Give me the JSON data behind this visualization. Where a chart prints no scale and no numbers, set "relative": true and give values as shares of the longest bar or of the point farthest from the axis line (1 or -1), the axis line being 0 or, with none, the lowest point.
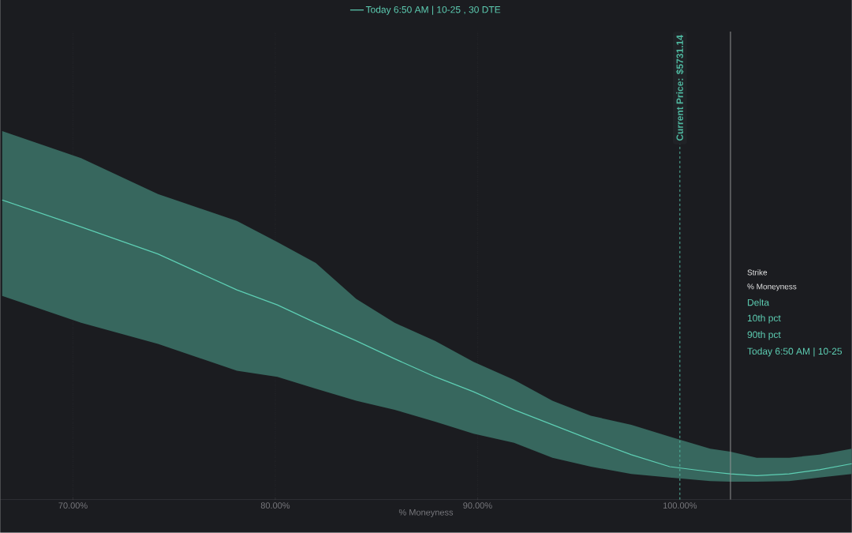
{
  "chart_data": {
    "type": "line",
    "relative": true,
    "xlabel": "% Moneyness",
    "x": [
      66.5,
      70.4,
      74.2,
      78.1,
      80.1,
      82.0,
      84.0,
      85.9,
      87.9,
      89.8,
      91.8,
      93.7,
      95.6,
      97.6,
      99.5,
      101.5,
      102.5,
      103.8,
      105.4,
      106.9,
      108.5
    ],
    "series": [
      {
        "name": "Today 6:50 AM | 10-25 , 30 DTE",
        "color": "#5ecfb4",
        "values": [
          1.0,
          0.91,
          0.82,
          0.7,
          0.65,
          0.59,
          0.53,
          0.47,
          0.41,
          0.36,
          0.3,
          0.25,
          0.2,
          0.15,
          0.11,
          0.093,
          0.086,
          0.08,
          0.086,
          0.1,
          0.12
        ],
        "upper": [
          1.23,
          1.14,
          1.02,
          0.93,
          0.86,
          0.79,
          0.67,
          0.59,
          0.53,
          0.46,
          0.4,
          0.33,
          0.28,
          0.25,
          0.21,
          0.17,
          0.16,
          0.14,
          0.14,
          0.15,
          0.17
        ],
        "lower": [
          0.68,
          0.59,
          0.52,
          0.43,
          0.41,
          0.37,
          0.33,
          0.3,
          0.26,
          0.22,
          0.19,
          0.14,
          0.11,
          0.086,
          0.074,
          0.062,
          0.06,
          0.06,
          0.062,
          0.074,
          0.086
        ]
      }
    ],
    "xlim": [
      66.4,
      108.5
    ],
    "xticks": [
      {
        "value": 70,
        "label": "70.00%"
      },
      {
        "value": 80,
        "label": "80.00%"
      },
      {
        "value": 90,
        "label": "90.00%"
      },
      {
        "value": 100,
        "label": "100.00%"
      }
    ],
    "ref_lines": [
      {
        "axis": "x",
        "value": 100,
        "color": "#4fb8a0",
        "line_style": "dashed"
      },
      {
        "axis": "x",
        "value": 102.5,
        "color": "#9a9a9a",
        "line_style": "solid"
      }
    ],
    "annotations": [
      "Current Price: $5731.14",
      "Strike",
      "% Moneyness",
      "Delta",
      "10th pct",
      "90th pct",
      "Today 6:50 AM | 10-25"
    ],
    "grid": "x",
    "legend": "top",
    "line_style": "solid",
    "marker": "none"
  }
}
